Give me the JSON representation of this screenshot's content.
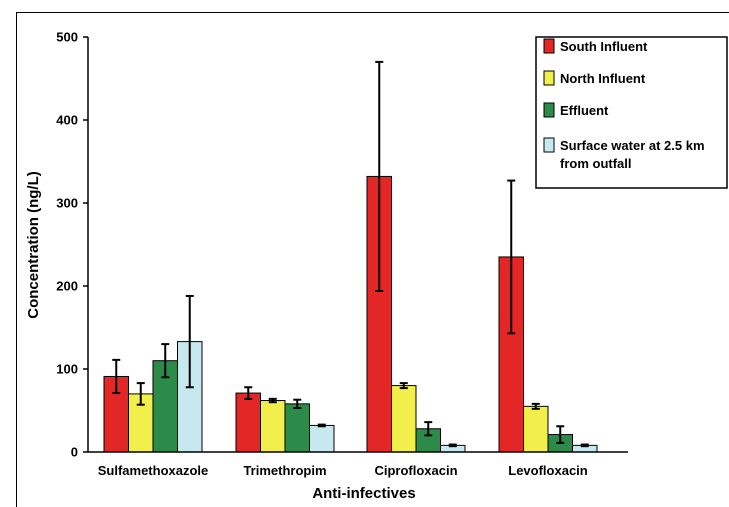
{
  "chart_data": {
    "type": "bar",
    "title": "",
    "xlabel": "Anti-infectives",
    "ylabel": "Concentration (ng/L)",
    "ylim": [
      0,
      500
    ],
    "yticks": [
      "0",
      "100",
      "200",
      "300",
      "400",
      "500"
    ],
    "grid": false,
    "legend_position": "top-right",
    "categories": [
      "Sulfamethoxazole",
      "Trimethropim",
      "Ciprofloxacin",
      "Levofloxacin"
    ],
    "series": [
      {
        "name": "South Influent",
        "color": "#e32626",
        "values": [
          91,
          71,
          332,
          235
        ],
        "error": [
          20,
          7,
          138,
          92
        ]
      },
      {
        "name": "North Influent",
        "color": "#f2ee4b",
        "values": [
          70,
          62,
          80,
          55
        ],
        "error": [
          13,
          2,
          3,
          3
        ]
      },
      {
        "name": "Effluent",
        "color": "#2d8b49",
        "values": [
          110,
          58,
          28,
          21
        ],
        "error": [
          20,
          5,
          8,
          10
        ]
      },
      {
        "name": "Surface water at 2.5 km from outfall",
        "legend_lines": [
          "Surface water at 2.5 km",
          "from outfall"
        ],
        "color": "#c8e8ef",
        "values": [
          133,
          32,
          8,
          8
        ],
        "error": [
          55,
          1,
          1,
          1
        ]
      }
    ]
  }
}
